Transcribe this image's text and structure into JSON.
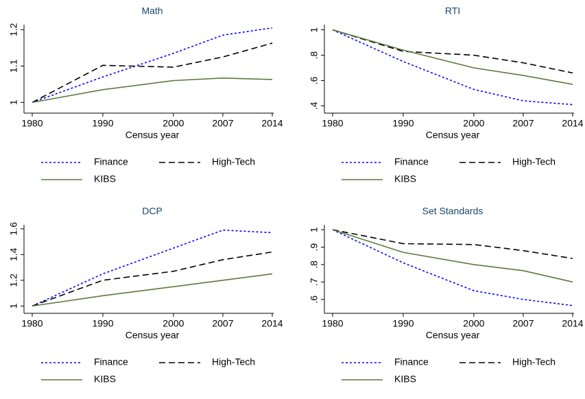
{
  "chart_data": [
    {
      "type": "line",
      "title": "Math",
      "x_label": "Census year",
      "x": [
        1980,
        1990,
        2000,
        2007,
        2014
      ],
      "xlim": [
        1980,
        2014
      ],
      "xticks": [
        1980,
        1990,
        2000,
        2007,
        2014
      ],
      "ylim": [
        0.98,
        1.21
      ],
      "yticks": [
        1,
        1.1,
        1.2
      ],
      "series": [
        {
          "name": "Finance",
          "color": "#0000ff",
          "style": "dotted",
          "values": [
            1,
            1.07,
            1.135,
            1.185,
            1.205
          ]
        },
        {
          "name": "High-Tech",
          "color": "#000000",
          "style": "dashed",
          "values": [
            1,
            1.102,
            1.097,
            1.125,
            1.163
          ]
        },
        {
          "name": "KIBS",
          "color": "#5a7a3a",
          "style": "solid",
          "values": [
            1,
            1.035,
            1.06,
            1.067,
            1.063
          ]
        }
      ]
    },
    {
      "type": "line",
      "title": "RTI",
      "x_label": "Census year",
      "x": [
        1980,
        1990,
        2000,
        2007,
        2014
      ],
      "xlim": [
        1980,
        2014
      ],
      "xticks": [
        1980,
        1990,
        2000,
        2007,
        2014
      ],
      "ylim": [
        0.37,
        1.03
      ],
      "yticks": [
        {
          "value": 0.4,
          "label": ".4"
        },
        {
          "value": 0.6,
          "label": ".6"
        },
        {
          "value": 0.8,
          "label": ".8"
        },
        1
      ],
      "series": [
        {
          "name": "Finance",
          "color": "#0000ff",
          "style": "dotted",
          "values": [
            1,
            0.75,
            0.53,
            0.44,
            0.41
          ]
        },
        {
          "name": "High-Tech",
          "color": "#000000",
          "style": "dashed",
          "values": [
            1,
            0.83,
            0.8,
            0.74,
            0.66
          ]
        },
        {
          "name": "KIBS",
          "color": "#5a7a3a",
          "style": "solid",
          "values": [
            1,
            0.84,
            0.7,
            0.64,
            0.57
          ]
        }
      ]
    },
    {
      "type": "line",
      "title": "DCP",
      "x_label": "Census year",
      "x": [
        1980,
        1990,
        2000,
        2007,
        2014
      ],
      "xlim": [
        1980,
        2014
      ],
      "xticks": [
        1980,
        1990,
        2000,
        2007,
        2014
      ],
      "ylim": [
        0.97,
        1.62
      ],
      "yticks": [
        1,
        1.2,
        1.4,
        1.6
      ],
      "series": [
        {
          "name": "Finance",
          "color": "#0000ff",
          "style": "dotted",
          "values": [
            1,
            1.25,
            1.45,
            1.59,
            1.57
          ]
        },
        {
          "name": "High-Tech",
          "color": "#000000",
          "style": "dashed",
          "values": [
            1,
            1.2,
            1.27,
            1.36,
            1.42
          ]
        },
        {
          "name": "KIBS",
          "color": "#5a7a3a",
          "style": "solid",
          "values": [
            1,
            1.08,
            1.15,
            1.2,
            1.25
          ]
        }
      ]
    },
    {
      "type": "line",
      "title": "Set Standards",
      "x_label": "Census year",
      "x": [
        1980,
        1990,
        2000,
        2007,
        2014
      ],
      "xlim": [
        1980,
        2014
      ],
      "xticks": [
        1980,
        1990,
        2000,
        2007,
        2014
      ],
      "ylim": [
        0.54,
        1.02
      ],
      "yticks": [
        {
          "value": 0.6,
          "label": ".6"
        },
        {
          "value": 0.7,
          "label": ".7"
        },
        {
          "value": 0.8,
          "label": ".8"
        },
        {
          "value": 0.9,
          "label": ".9"
        },
        1
      ],
      "series": [
        {
          "name": "Finance",
          "color": "#0000ff",
          "style": "dotted",
          "values": [
            1,
            0.81,
            0.65,
            0.6,
            0.565
          ]
        },
        {
          "name": "High-Tech",
          "color": "#000000",
          "style": "dashed",
          "values": [
            1,
            0.92,
            0.915,
            0.88,
            0.835
          ]
        },
        {
          "name": "KIBS",
          "color": "#5a7a3a",
          "style": "solid",
          "values": [
            1,
            0.87,
            0.8,
            0.765,
            0.7
          ]
        }
      ]
    }
  ]
}
